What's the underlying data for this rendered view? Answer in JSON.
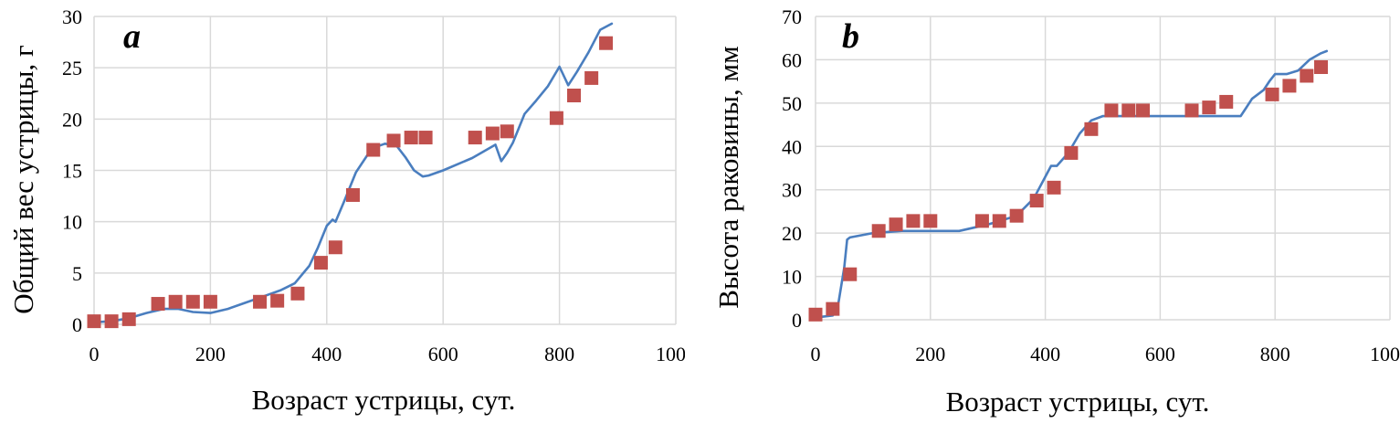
{
  "chart_data": [
    {
      "type": "line",
      "panel_label": "a",
      "xlabel": "Возраст устрицы, сут.",
      "ylabel": "Общий вес устрицы, г",
      "xlim": [
        0,
        1000
      ],
      "ylim": [
        0,
        30
      ],
      "xticks": [
        "0",
        "200",
        "400",
        "600",
        "800",
        "1000"
      ],
      "yticks": [
        "0",
        "5",
        "10",
        "15",
        "20",
        "25",
        "30"
      ],
      "grid": true,
      "line_color": "#4a7ebf",
      "marker_color": "#c0504d",
      "series": [
        {
          "type": "line",
          "x": [
            0,
            30,
            60,
            90,
            120,
            145,
            170,
            200,
            230,
            260,
            290,
            320,
            345,
            370,
            385,
            400,
            410,
            415,
            430,
            450,
            470,
            485,
            500,
            520,
            535,
            550,
            565,
            575,
            600,
            650,
            690,
            700,
            710,
            720,
            740,
            760,
            780,
            800,
            810,
            815,
            830,
            850,
            870,
            890
          ],
          "y": [
            0.2,
            0.3,
            0.6,
            1.1,
            1.5,
            1.5,
            1.2,
            1.1,
            1.5,
            2.1,
            2.7,
            3.3,
            4.0,
            5.7,
            7.5,
            9.6,
            10.2,
            10.0,
            12.0,
            14.8,
            16.5,
            17.3,
            17.6,
            17.4,
            16.3,
            15.0,
            14.4,
            14.5,
            15.0,
            16.2,
            17.5,
            15.9,
            16.7,
            17.7,
            20.5,
            21.8,
            23.2,
            25.1,
            23.9,
            23.3,
            24.6,
            26.5,
            28.7,
            29.3
          ]
        },
        {
          "type": "scatter",
          "x": [
            0,
            30,
            60,
            110,
            140,
            170,
            200,
            285,
            315,
            350,
            390,
            415,
            445,
            480,
            515,
            545,
            570,
            655,
            685,
            710,
            795,
            825,
            855,
            880
          ],
          "y": [
            0.3,
            0.3,
            0.5,
            2.0,
            2.2,
            2.2,
            2.2,
            2.2,
            2.3,
            3.0,
            6.0,
            7.5,
            12.6,
            17.0,
            17.9,
            18.2,
            18.2,
            18.2,
            18.6,
            18.8,
            20.1,
            22.3,
            24.0,
            27.4
          ]
        }
      ]
    },
    {
      "type": "line",
      "panel_label": "b",
      "xlabel": "Возраст устрицы, сут.",
      "ylabel": "Высота раковины, мм",
      "xlim": [
        0,
        1000
      ],
      "ylim": [
        0,
        70
      ],
      "xticks": [
        "0",
        "200",
        "400",
        "600",
        "800",
        "1000"
      ],
      "yticks": [
        "0",
        "10",
        "20",
        "30",
        "40",
        "50",
        "60",
        "70"
      ],
      "grid": true,
      "line_color": "#4a7ebf",
      "marker_color": "#c0504d",
      "series": [
        {
          "type": "line",
          "x": [
            0,
            30,
            40,
            50,
            55,
            60,
            100,
            150,
            200,
            250,
            300,
            350,
            380,
            400,
            410,
            420,
            440,
            460,
            480,
            500,
            520,
            600,
            650,
            700,
            740,
            750,
            760,
            780,
            790,
            800,
            820,
            840,
            860,
            880,
            890
          ],
          "y": [
            0.5,
            1.0,
            4.0,
            12.0,
            18.5,
            19.0,
            20.0,
            20.5,
            20.5,
            20.5,
            22.0,
            24.0,
            28.0,
            33.0,
            35.5,
            35.5,
            38.5,
            43.0,
            46.0,
            47.0,
            47.0,
            47.0,
            47.0,
            47.0,
            47.0,
            49.0,
            51.0,
            53.0,
            55.0,
            56.7,
            56.7,
            57.5,
            60.0,
            61.5,
            62.0
          ]
        },
        {
          "type": "scatter",
          "x": [
            0,
            30,
            60,
            110,
            140,
            170,
            200,
            290,
            320,
            350,
            385,
            415,
            445,
            480,
            515,
            545,
            570,
            655,
            685,
            715,
            795,
            825,
            855,
            880
          ],
          "y": [
            1.2,
            2.5,
            10.5,
            20.5,
            22.0,
            22.8,
            22.8,
            22.8,
            22.8,
            24.0,
            27.5,
            30.5,
            38.5,
            44.0,
            48.3,
            48.3,
            48.3,
            48.3,
            49.0,
            50.3,
            52.0,
            54.0,
            56.3,
            58.3
          ]
        }
      ]
    }
  ]
}
